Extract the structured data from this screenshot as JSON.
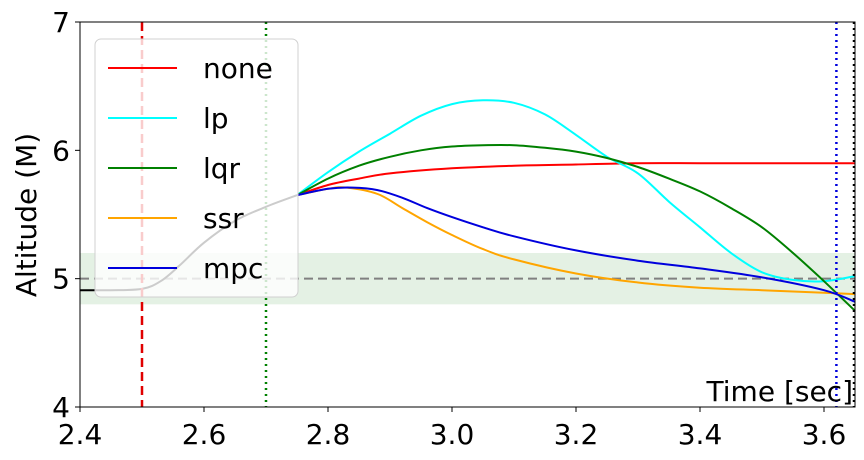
{
  "chart_data": {
    "type": "line",
    "title": "",
    "xlabel": "Time [sec]",
    "ylabel": "Altitude (M)",
    "xlim": [
      2.4,
      3.65
    ],
    "ylim": [
      4,
      7
    ],
    "x_ticks": [
      2.4,
      2.6,
      2.8,
      3.0,
      3.2,
      3.4,
      3.6
    ],
    "x_tick_labels": [
      "2.4",
      "2.6",
      "2.8",
      "3.0",
      "3.2",
      "3.4",
      "3.6"
    ],
    "y_ticks": [
      4,
      5,
      6,
      7
    ],
    "y_tick_labels": [
      "4",
      "5",
      "6",
      "7"
    ],
    "grid": false,
    "legend_position": "upper-left",
    "target_band": {
      "y_min": 4.8,
      "y_max": 5.2,
      "color": "#d6e9d6"
    },
    "reference_line": {
      "y": 5.0,
      "color": "#808080",
      "style": "dashed"
    },
    "vertical_markers": [
      {
        "x": 2.5,
        "color": "#e00000",
        "style": "dashed"
      },
      {
        "x": 2.7,
        "color": "#008000",
        "style": "dotted"
      },
      {
        "x": 3.62,
        "color": "#0000dd",
        "style": "dotted"
      },
      {
        "x": 3.65,
        "color": "#000000",
        "style": "dotted"
      }
    ],
    "prelude": {
      "color": "#000000",
      "x": [
        2.4,
        2.45,
        2.5,
        2.53,
        2.56,
        2.6,
        2.65,
        2.7,
        2.75
      ],
      "y": [
        4.91,
        4.91,
        4.92,
        4.98,
        5.1,
        5.28,
        5.45,
        5.56,
        5.65
      ]
    },
    "series": [
      {
        "name": "none",
        "color": "#ff0000",
        "x": [
          2.75,
          2.8,
          2.85,
          2.9,
          3.0,
          3.1,
          3.2,
          3.3,
          3.4,
          3.5,
          3.65
        ],
        "y": [
          5.65,
          5.73,
          5.78,
          5.82,
          5.86,
          5.88,
          5.89,
          5.9,
          5.9,
          5.9,
          5.9
        ]
      },
      {
        "name": "lp",
        "color": "#00ffff",
        "x": [
          2.75,
          2.8,
          2.85,
          2.9,
          2.95,
          3.0,
          3.05,
          3.1,
          3.15,
          3.2,
          3.25,
          3.3,
          3.35,
          3.4,
          3.45,
          3.5,
          3.55,
          3.6,
          3.65
        ],
        "y": [
          5.65,
          5.83,
          5.99,
          6.13,
          6.27,
          6.36,
          6.39,
          6.37,
          6.28,
          6.12,
          5.95,
          5.82,
          5.6,
          5.4,
          5.2,
          5.05,
          4.99,
          4.98,
          5.02
        ]
      },
      {
        "name": "lqr",
        "color": "#008000",
        "x": [
          2.75,
          2.8,
          2.85,
          2.9,
          2.95,
          3.0,
          3.05,
          3.1,
          3.15,
          3.2,
          3.25,
          3.3,
          3.35,
          3.4,
          3.45,
          3.5,
          3.55,
          3.6,
          3.65
        ],
        "y": [
          5.65,
          5.78,
          5.88,
          5.95,
          6.0,
          6.03,
          6.04,
          6.04,
          6.02,
          5.99,
          5.94,
          5.87,
          5.78,
          5.68,
          5.55,
          5.4,
          5.2,
          4.98,
          4.75
        ]
      },
      {
        "name": "ssr",
        "color": "#ffa500",
        "x": [
          2.75,
          2.8,
          2.83,
          2.88,
          2.92,
          2.96,
          3.0,
          3.05,
          3.1,
          3.2,
          3.3,
          3.4,
          3.5,
          3.6,
          3.65
        ],
        "y": [
          5.65,
          5.7,
          5.71,
          5.66,
          5.55,
          5.44,
          5.34,
          5.23,
          5.15,
          5.04,
          4.97,
          4.93,
          4.91,
          4.89,
          4.88
        ]
      },
      {
        "name": "mpc",
        "color": "#0000dd",
        "x": [
          2.75,
          2.8,
          2.84,
          2.88,
          2.92,
          2.96,
          3.0,
          3.05,
          3.1,
          3.2,
          3.3,
          3.4,
          3.5,
          3.6,
          3.65
        ],
        "y": [
          5.65,
          5.7,
          5.71,
          5.69,
          5.63,
          5.55,
          5.48,
          5.4,
          5.33,
          5.22,
          5.14,
          5.08,
          5.01,
          4.91,
          4.82
        ]
      }
    ]
  }
}
